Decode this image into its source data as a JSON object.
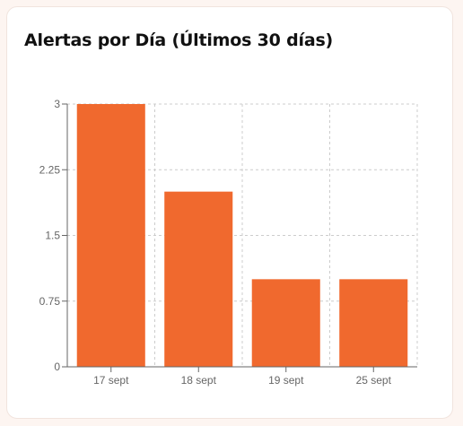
{
  "card": {
    "title": "Alertas por Día (Últimos 30 días)"
  },
  "chart_data": {
    "type": "bar",
    "title": "Alertas por Día (Últimos 30 días)",
    "categories": [
      "17 sept",
      "18 sept",
      "19 sept",
      "25 sept"
    ],
    "values": [
      3,
      2,
      1,
      1
    ],
    "ylim": [
      0,
      3
    ],
    "yticks": [
      0,
      0.75,
      1.5,
      2.25,
      3
    ],
    "ytick_labels": [
      "0",
      "0.75",
      "1.5",
      "2.25",
      "3"
    ],
    "xlabel": "",
    "ylabel": "",
    "grid": true,
    "bar_color": "#f0692e",
    "grid_color": "#cccccc",
    "axis_color": "#666666"
  }
}
